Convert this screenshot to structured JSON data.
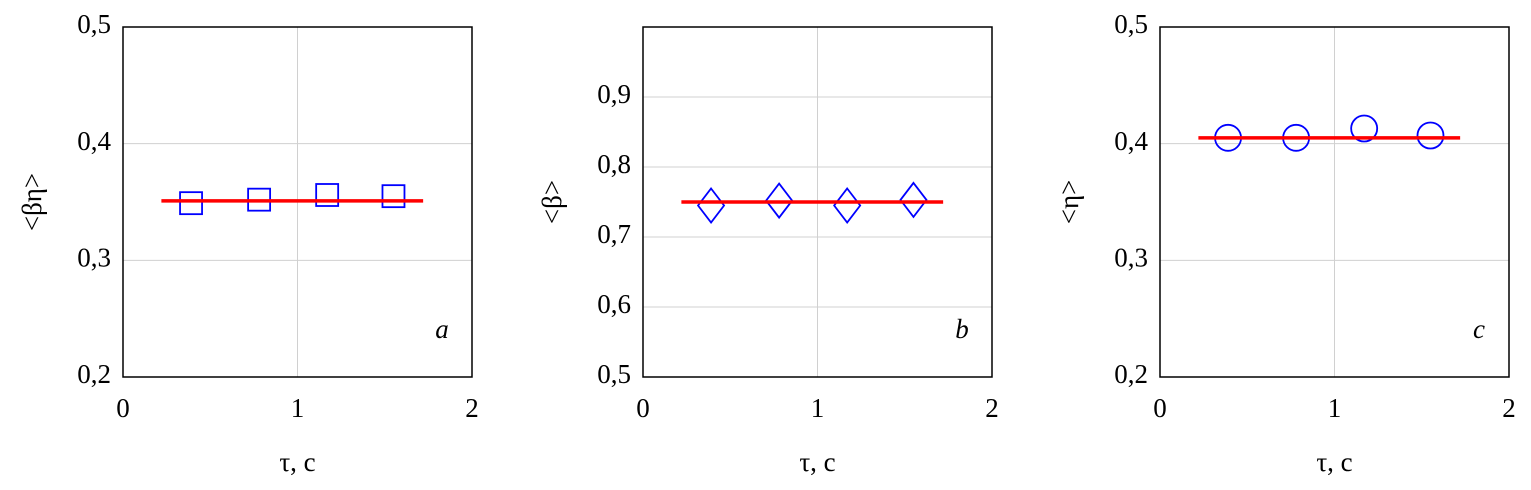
{
  "chart_data": [
    {
      "type": "scatter",
      "ylabel": "<βη>",
      "xlabel": "τ, c",
      "annotation": "a",
      "xlim": [
        0,
        2
      ],
      "xticks": [
        0,
        1,
        2
      ],
      "ylim": [
        0.2,
        0.5
      ],
      "yticks": [
        {
          "value": 0.2,
          "label": "0,2"
        },
        {
          "value": 0.3,
          "label": "0,3"
        },
        {
          "value": 0.4,
          "label": "0,4"
        },
        {
          "value": 0.5,
          "label": "0,5"
        }
      ],
      "grid": true,
      "series": [
        {
          "marker": "square",
          "color": "#0000ff",
          "x": [
            0.39,
            0.78,
            1.17,
            1.55
          ],
          "values": [
            0.349,
            0.352,
            0.356,
            0.355
          ]
        },
        {
          "type": "line",
          "color": "#ff0000",
          "x": [
            0.22,
            1.72
          ],
          "values": [
            0.351,
            0.351
          ]
        }
      ]
    },
    {
      "type": "scatter",
      "ylabel": "<β>",
      "xlabel": "τ, c",
      "annotation": "b",
      "xlim": [
        0,
        2
      ],
      "xticks": [
        0,
        1,
        2
      ],
      "ylim": [
        0.5,
        1.0
      ],
      "yticks": [
        {
          "value": 0.5,
          "label": "0,5"
        },
        {
          "value": 0.6,
          "label": "0,6"
        },
        {
          "value": 0.7,
          "label": "0,7"
        },
        {
          "value": 0.8,
          "label": "0,8"
        },
        {
          "value": 0.9,
          "label": "0,9"
        }
      ],
      "grid": true,
      "series": [
        {
          "marker": "diamond",
          "color": "#0000ff",
          "x": [
            0.39,
            0.78,
            1.17,
            1.55
          ],
          "values": [
            0.745,
            0.752,
            0.745,
            0.753
          ]
        },
        {
          "type": "line",
          "color": "#ff0000",
          "x": [
            0.22,
            1.72
          ],
          "values": [
            0.75,
            0.75
          ]
        }
      ]
    },
    {
      "type": "scatter",
      "ylabel": "<η>",
      "xlabel": "τ, c",
      "annotation": "c",
      "xlim": [
        0,
        2
      ],
      "xticks": [
        0,
        1,
        2
      ],
      "ylim": [
        0.2,
        0.5
      ],
      "yticks": [
        {
          "value": 0.2,
          "label": "0,2"
        },
        {
          "value": 0.3,
          "label": "0,3"
        },
        {
          "value": 0.4,
          "label": "0,4"
        },
        {
          "value": 0.5,
          "label": "0,5"
        }
      ],
      "grid": true,
      "series": [
        {
          "marker": "circle",
          "color": "#0000ff",
          "x": [
            0.39,
            0.78,
            1.17,
            1.55
          ],
          "values": [
            0.405,
            0.405,
            0.413,
            0.407
          ]
        },
        {
          "type": "line",
          "color": "#ff0000",
          "x": [
            0.22,
            1.72
          ],
          "values": [
            0.405,
            0.405
          ]
        }
      ]
    }
  ]
}
